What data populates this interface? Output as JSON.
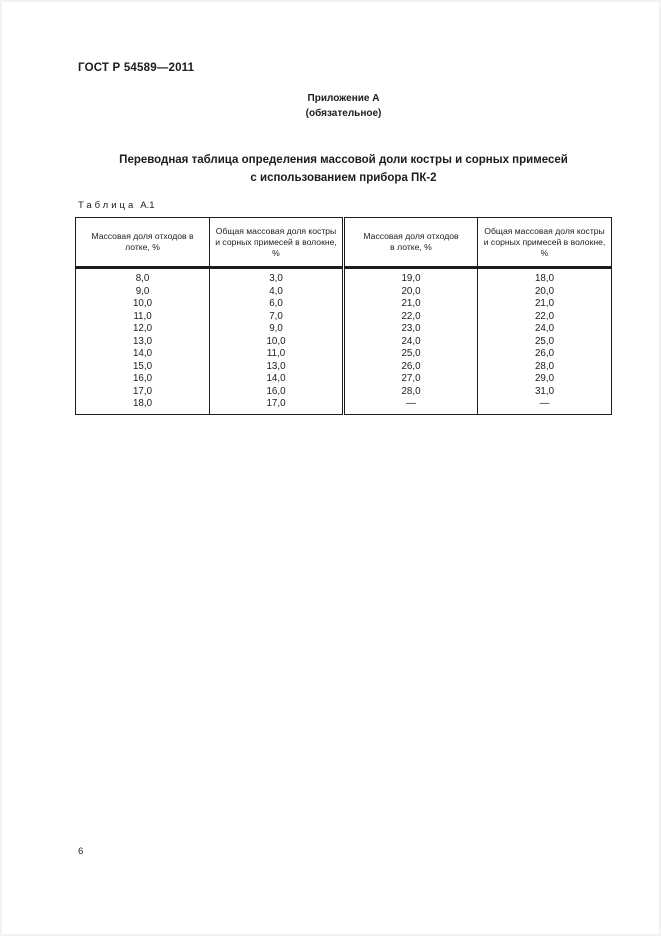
{
  "page": {
    "doc_number": "ГОСТ Р 54589—2011",
    "appendix_title": "Приложение А",
    "appendix_subtitle": "(обязательное)",
    "title_line1": "Переводная таблица определения массовой доли костры и сорных примесей",
    "title_line2": "с использованием прибора ПК-2",
    "table_label_word": "Таблица",
    "table_label_number": "А.1",
    "page_number": "6"
  },
  "table": {
    "headers": [
      "Массовая доля отходов в лотке, %",
      "Общая массовая доля костры и сорных примесей в волокне, %",
      "Массовая доля отходов в лотке, %",
      "Общая массовая доля костры и сорных примесей в волокне, %"
    ],
    "rows": [
      [
        "8,0",
        "3,0",
        "19,0",
        "18,0"
      ],
      [
        "9,0",
        "4,0",
        "20,0",
        "20,0"
      ],
      [
        "10,0",
        "6,0",
        "21,0",
        "21,0"
      ],
      [
        "11,0",
        "7,0",
        "22,0",
        "22,0"
      ],
      [
        "12,0",
        "9,0",
        "23,0",
        "24,0"
      ],
      [
        "13,0",
        "10,0",
        "24,0",
        "25,0"
      ],
      [
        "14,0",
        "11,0",
        "25,0",
        "26,0"
      ],
      [
        "15,0",
        "13,0",
        "26,0",
        "28,0"
      ],
      [
        "16,0",
        "14,0",
        "27,0",
        "29,0"
      ],
      [
        "17,0",
        "16,0",
        "28,0",
        "31,0"
      ],
      [
        "18,0",
        "17,0",
        "—",
        "—"
      ]
    ]
  }
}
